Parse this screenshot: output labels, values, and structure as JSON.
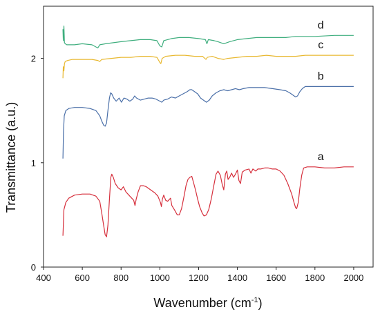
{
  "chart_data": {
    "type": "line",
    "title": "",
    "xlabel": "Wavenumber (cm",
    "xlabel_sup": "-1",
    "xlabel_close": ")",
    "ylabel": "Transmittance (a.u.)",
    "xlim": [
      400,
      2100
    ],
    "ylim": [
      0,
      2.5
    ],
    "xticks": [
      "400",
      "600",
      "800",
      "1000",
      "1200",
      "1400",
      "1600",
      "1800",
      "2000"
    ],
    "yticks": [
      "0",
      "1",
      "2"
    ],
    "grid": false,
    "series": [
      {
        "name": "a",
        "color": "#d62f3c",
        "points": [
          [
            500,
            0.3
          ],
          [
            505,
            0.55
          ],
          [
            515,
            0.62
          ],
          [
            530,
            0.66
          ],
          [
            560,
            0.69
          ],
          [
            600,
            0.7
          ],
          [
            640,
            0.7
          ],
          [
            670,
            0.68
          ],
          [
            690,
            0.63
          ],
          [
            700,
            0.52
          ],
          [
            710,
            0.4
          ],
          [
            718,
            0.31
          ],
          [
            725,
            0.29
          ],
          [
            732,
            0.4
          ],
          [
            740,
            0.65
          ],
          [
            747,
            0.86
          ],
          [
            752,
            0.89
          ],
          [
            760,
            0.86
          ],
          [
            770,
            0.8
          ],
          [
            785,
            0.76
          ],
          [
            800,
            0.74
          ],
          [
            812,
            0.77
          ],
          [
            825,
            0.72
          ],
          [
            840,
            0.69
          ],
          [
            855,
            0.66
          ],
          [
            865,
            0.64
          ],
          [
            872,
            0.59
          ],
          [
            878,
            0.65
          ],
          [
            888,
            0.72
          ],
          [
            900,
            0.78
          ],
          [
            915,
            0.78
          ],
          [
            930,
            0.77
          ],
          [
            945,
            0.75
          ],
          [
            960,
            0.73
          ],
          [
            975,
            0.71
          ],
          [
            990,
            0.68
          ],
          [
            1003,
            0.62
          ],
          [
            1008,
            0.58
          ],
          [
            1013,
            0.65
          ],
          [
            1020,
            0.69
          ],
          [
            1030,
            0.64
          ],
          [
            1040,
            0.63
          ],
          [
            1055,
            0.66
          ],
          [
            1062,
            0.59
          ],
          [
            1075,
            0.55
          ],
          [
            1090,
            0.5
          ],
          [
            1100,
            0.5
          ],
          [
            1112,
            0.56
          ],
          [
            1125,
            0.68
          ],
          [
            1135,
            0.78
          ],
          [
            1145,
            0.84
          ],
          [
            1155,
            0.86
          ],
          [
            1165,
            0.87
          ],
          [
            1175,
            0.8
          ],
          [
            1185,
            0.73
          ],
          [
            1195,
            0.65
          ],
          [
            1205,
            0.58
          ],
          [
            1218,
            0.52
          ],
          [
            1228,
            0.49
          ],
          [
            1240,
            0.5
          ],
          [
            1252,
            0.55
          ],
          [
            1265,
            0.65
          ],
          [
            1278,
            0.78
          ],
          [
            1290,
            0.89
          ],
          [
            1300,
            0.92
          ],
          [
            1312,
            0.88
          ],
          [
            1322,
            0.79
          ],
          [
            1330,
            0.74
          ],
          [
            1338,
            0.89
          ],
          [
            1345,
            0.92
          ],
          [
            1352,
            0.84
          ],
          [
            1360,
            0.86
          ],
          [
            1370,
            0.9
          ],
          [
            1380,
            0.86
          ],
          [
            1390,
            0.89
          ],
          [
            1400,
            0.93
          ],
          [
            1408,
            0.83
          ],
          [
            1416,
            0.8
          ],
          [
            1425,
            0.91
          ],
          [
            1440,
            0.93
          ],
          [
            1460,
            0.94
          ],
          [
            1470,
            0.9
          ],
          [
            1480,
            0.94
          ],
          [
            1495,
            0.92
          ],
          [
            1505,
            0.94
          ],
          [
            1520,
            0.94
          ],
          [
            1540,
            0.95
          ],
          [
            1560,
            0.95
          ],
          [
            1580,
            0.94
          ],
          [
            1600,
            0.94
          ],
          [
            1620,
            0.92
          ],
          [
            1640,
            0.88
          ],
          [
            1660,
            0.8
          ],
          [
            1680,
            0.7
          ],
          [
            1692,
            0.62
          ],
          [
            1700,
            0.57
          ],
          [
            1706,
            0.56
          ],
          [
            1714,
            0.62
          ],
          [
            1722,
            0.75
          ],
          [
            1732,
            0.88
          ],
          [
            1742,
            0.95
          ],
          [
            1760,
            0.96
          ],
          [
            1800,
            0.96
          ],
          [
            1850,
            0.95
          ],
          [
            1900,
            0.95
          ],
          [
            1950,
            0.96
          ],
          [
            2000,
            0.96
          ]
        ]
      },
      {
        "name": "b",
        "color": "#4a6fa8",
        "points": [
          [
            500,
            1.04
          ],
          [
            503,
            1.3
          ],
          [
            507,
            1.45
          ],
          [
            515,
            1.5
          ],
          [
            530,
            1.52
          ],
          [
            560,
            1.53
          ],
          [
            600,
            1.53
          ],
          [
            640,
            1.52
          ],
          [
            670,
            1.5
          ],
          [
            690,
            1.45
          ],
          [
            700,
            1.4
          ],
          [
            710,
            1.36
          ],
          [
            718,
            1.35
          ],
          [
            725,
            1.38
          ],
          [
            732,
            1.5
          ],
          [
            740,
            1.62
          ],
          [
            746,
            1.67
          ],
          [
            752,
            1.66
          ],
          [
            762,
            1.62
          ],
          [
            775,
            1.59
          ],
          [
            790,
            1.62
          ],
          [
            802,
            1.58
          ],
          [
            815,
            1.62
          ],
          [
            830,
            1.61
          ],
          [
            845,
            1.59
          ],
          [
            860,
            1.61
          ],
          [
            870,
            1.64
          ],
          [
            880,
            1.62
          ],
          [
            900,
            1.6
          ],
          [
            920,
            1.61
          ],
          [
            940,
            1.62
          ],
          [
            960,
            1.62
          ],
          [
            980,
            1.61
          ],
          [
            1000,
            1.59
          ],
          [
            1010,
            1.58
          ],
          [
            1020,
            1.6
          ],
          [
            1040,
            1.61
          ],
          [
            1060,
            1.63
          ],
          [
            1080,
            1.62
          ],
          [
            1100,
            1.64
          ],
          [
            1120,
            1.66
          ],
          [
            1140,
            1.68
          ],
          [
            1155,
            1.7
          ],
          [
            1165,
            1.7
          ],
          [
            1180,
            1.68
          ],
          [
            1195,
            1.66
          ],
          [
            1210,
            1.62
          ],
          [
            1225,
            1.6
          ],
          [
            1240,
            1.58
          ],
          [
            1255,
            1.6
          ],
          [
            1270,
            1.64
          ],
          [
            1290,
            1.67
          ],
          [
            1310,
            1.69
          ],
          [
            1330,
            1.7
          ],
          [
            1350,
            1.69
          ],
          [
            1370,
            1.7
          ],
          [
            1390,
            1.71
          ],
          [
            1410,
            1.7
          ],
          [
            1430,
            1.71
          ],
          [
            1460,
            1.72
          ],
          [
            1500,
            1.72
          ],
          [
            1540,
            1.72
          ],
          [
            1580,
            1.71
          ],
          [
            1620,
            1.7
          ],
          [
            1650,
            1.69
          ],
          [
            1670,
            1.67
          ],
          [
            1685,
            1.65
          ],
          [
            1700,
            1.63
          ],
          [
            1710,
            1.64
          ],
          [
            1722,
            1.68
          ],
          [
            1735,
            1.71
          ],
          [
            1750,
            1.73
          ],
          [
            1800,
            1.73
          ],
          [
            1850,
            1.73
          ],
          [
            1900,
            1.73
          ],
          [
            1950,
            1.73
          ],
          [
            2000,
            1.73
          ]
        ]
      },
      {
        "name": "c",
        "color": "#e8b830",
        "points": [
          [
            500,
            1.81
          ],
          [
            502,
            1.92
          ],
          [
            505,
            1.88
          ],
          [
            508,
            1.95
          ],
          [
            512,
            1.97
          ],
          [
            525,
            1.98
          ],
          [
            550,
            1.99
          ],
          [
            600,
            1.99
          ],
          [
            650,
            1.99
          ],
          [
            680,
            1.98
          ],
          [
            690,
            1.97
          ],
          [
            700,
            1.99
          ],
          [
            750,
            2.0
          ],
          [
            800,
            2.01
          ],
          [
            850,
            2.01
          ],
          [
            900,
            2.02
          ],
          [
            950,
            2.02
          ],
          [
            985,
            2.01
          ],
          [
            1000,
            1.96
          ],
          [
            1005,
            1.95
          ],
          [
            1012,
            2.0
          ],
          [
            1030,
            2.02
          ],
          [
            1080,
            2.03
          ],
          [
            1130,
            2.03
          ],
          [
            1180,
            2.02
          ],
          [
            1220,
            2.02
          ],
          [
            1238,
            1.99
          ],
          [
            1245,
            2.01
          ],
          [
            1270,
            2.02
          ],
          [
            1300,
            2.0
          ],
          [
            1330,
            1.99
          ],
          [
            1350,
            2.0
          ],
          [
            1400,
            2.01
          ],
          [
            1450,
            2.02
          ],
          [
            1500,
            2.02
          ],
          [
            1550,
            2.03
          ],
          [
            1600,
            2.02
          ],
          [
            1650,
            2.02
          ],
          [
            1700,
            2.02
          ],
          [
            1750,
            2.03
          ],
          [
            1800,
            2.03
          ],
          [
            1900,
            2.03
          ],
          [
            2000,
            2.03
          ]
        ]
      },
      {
        "name": "d",
        "color": "#3fae7e",
        "points": [
          [
            500,
            2.28
          ],
          [
            502,
            2.17
          ],
          [
            505,
            2.31
          ],
          [
            508,
            2.15
          ],
          [
            512,
            2.14
          ],
          [
            520,
            2.13
          ],
          [
            560,
            2.13
          ],
          [
            600,
            2.14
          ],
          [
            650,
            2.13
          ],
          [
            680,
            2.1
          ],
          [
            690,
            2.13
          ],
          [
            720,
            2.14
          ],
          [
            760,
            2.15
          ],
          [
            800,
            2.16
          ],
          [
            850,
            2.17
          ],
          [
            900,
            2.18
          ],
          [
            950,
            2.18
          ],
          [
            985,
            2.17
          ],
          [
            1000,
            2.12
          ],
          [
            1010,
            2.11
          ],
          [
            1020,
            2.17
          ],
          [
            1060,
            2.19
          ],
          [
            1100,
            2.2
          ],
          [
            1150,
            2.2
          ],
          [
            1200,
            2.19
          ],
          [
            1235,
            2.18
          ],
          [
            1243,
            2.14
          ],
          [
            1250,
            2.18
          ],
          [
            1280,
            2.17
          ],
          [
            1300,
            2.16
          ],
          [
            1330,
            2.14
          ],
          [
            1360,
            2.16
          ],
          [
            1400,
            2.18
          ],
          [
            1450,
            2.19
          ],
          [
            1500,
            2.2
          ],
          [
            1550,
            2.2
          ],
          [
            1600,
            2.2
          ],
          [
            1650,
            2.2
          ],
          [
            1700,
            2.21
          ],
          [
            1750,
            2.21
          ],
          [
            1800,
            2.21
          ],
          [
            1900,
            2.22
          ],
          [
            2000,
            2.22
          ]
        ]
      }
    ]
  }
}
